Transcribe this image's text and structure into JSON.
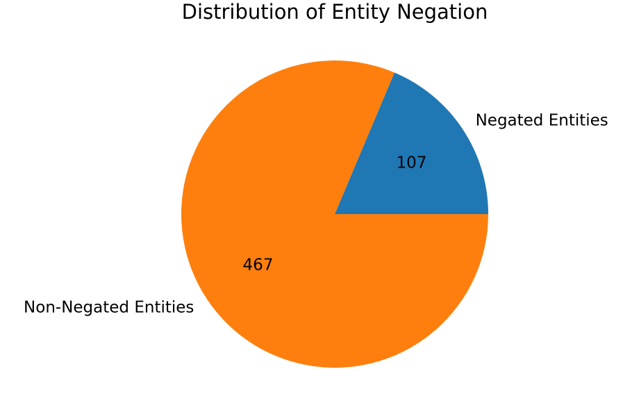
{
  "chart_data": {
    "type": "pie",
    "title": "Distribution of Entity Negation",
    "slices": [
      {
        "label": "Negated Entities",
        "value": 107,
        "color": "#1f77b4"
      },
      {
        "label": "Non-Negated Entities",
        "value": 467,
        "color": "#ff7f0e"
      }
    ],
    "start_angle": 0,
    "direction": "counterclockwise",
    "value_labels": "absolute counts"
  }
}
